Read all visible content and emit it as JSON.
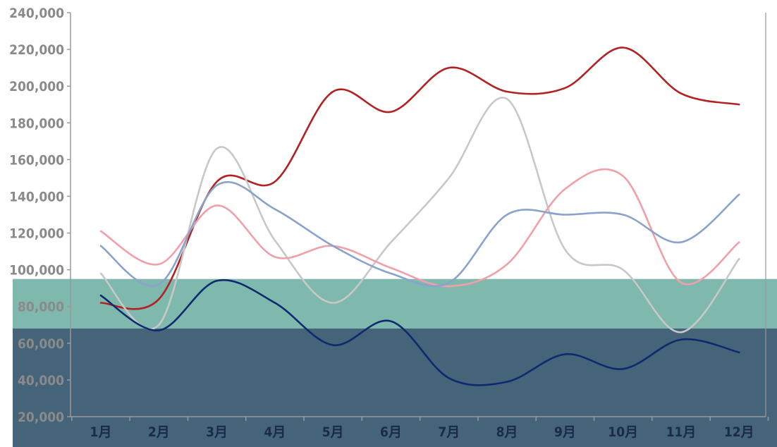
{
  "chart_data": {
    "type": "line",
    "smooth": true,
    "categories": [
      "1月",
      "2月",
      "3月",
      "4月",
      "5月",
      "6月",
      "7月",
      "8月",
      "9月",
      "10月",
      "11月",
      "12月"
    ],
    "ylim": [
      20000,
      240000
    ],
    "yticks": [
      "20,000",
      "40,000",
      "60,000",
      "80,000",
      "100,000",
      "120,000",
      "140,000",
      "160,000",
      "180,000",
      "200,000",
      "220,000",
      "240,000"
    ],
    "grid": false,
    "legend": "none",
    "bands": [
      {
        "from": 68000,
        "to": 95000,
        "color": "#7fb8ad"
      },
      {
        "from": 20000,
        "to": 68000,
        "color": "#45647a"
      }
    ],
    "series": [
      {
        "color": "#b22222",
        "values": [
          82000,
          84000,
          148000,
          148000,
          197000,
          186000,
          210000,
          197000,
          199000,
          221000,
          196000,
          190000
        ]
      },
      {
        "color": "#c8c8c8",
        "values": [
          98000,
          70000,
          166000,
          116000,
          82000,
          115000,
          150000,
          193000,
          111000,
          100000,
          66000,
          106000
        ]
      },
      {
        "color": "#f0a0a8",
        "values": [
          121000,
          103000,
          135000,
          107000,
          113000,
          101000,
          91000,
          103000,
          144000,
          151000,
          93000,
          115000
        ]
      },
      {
        "color": "#8aa2cc",
        "values": [
          113000,
          92000,
          146000,
          133000,
          113000,
          98000,
          93000,
          130000,
          130000,
          130000,
          115000,
          141000
        ]
      },
      {
        "color": "#0d2a6e",
        "values": [
          86000,
          67000,
          94000,
          82000,
          59000,
          72000,
          41000,
          39000,
          54000,
          46000,
          62000,
          55000
        ]
      }
    ]
  }
}
